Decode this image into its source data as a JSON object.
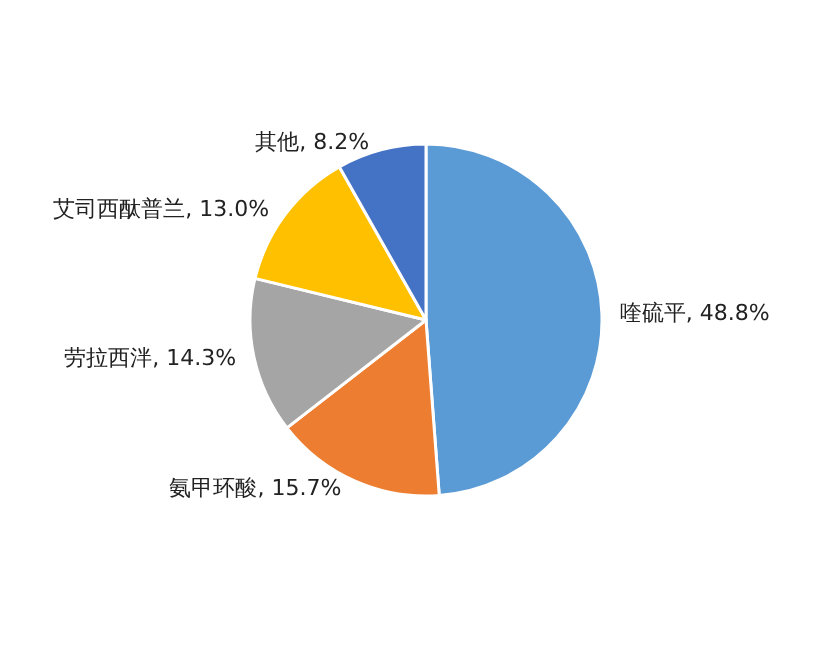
{
  "chart_data": {
    "type": "pie",
    "categories": [
      "喹硫平",
      "氨甲环酸",
      "劳拉西泮",
      "艾司西酞普兰",
      "其他"
    ],
    "values": [
      48.8,
      15.7,
      14.3,
      13.0,
      8.2
    ],
    "value_labels": [
      "48.8%",
      "15.7%",
      "14.3%",
      "13.0%",
      "8.2%"
    ],
    "colors": [
      "#5b9bd5",
      "#ed7d31",
      "#a5a5a5",
      "#ffc000",
      "#4472c4"
    ],
    "legend": false
  }
}
